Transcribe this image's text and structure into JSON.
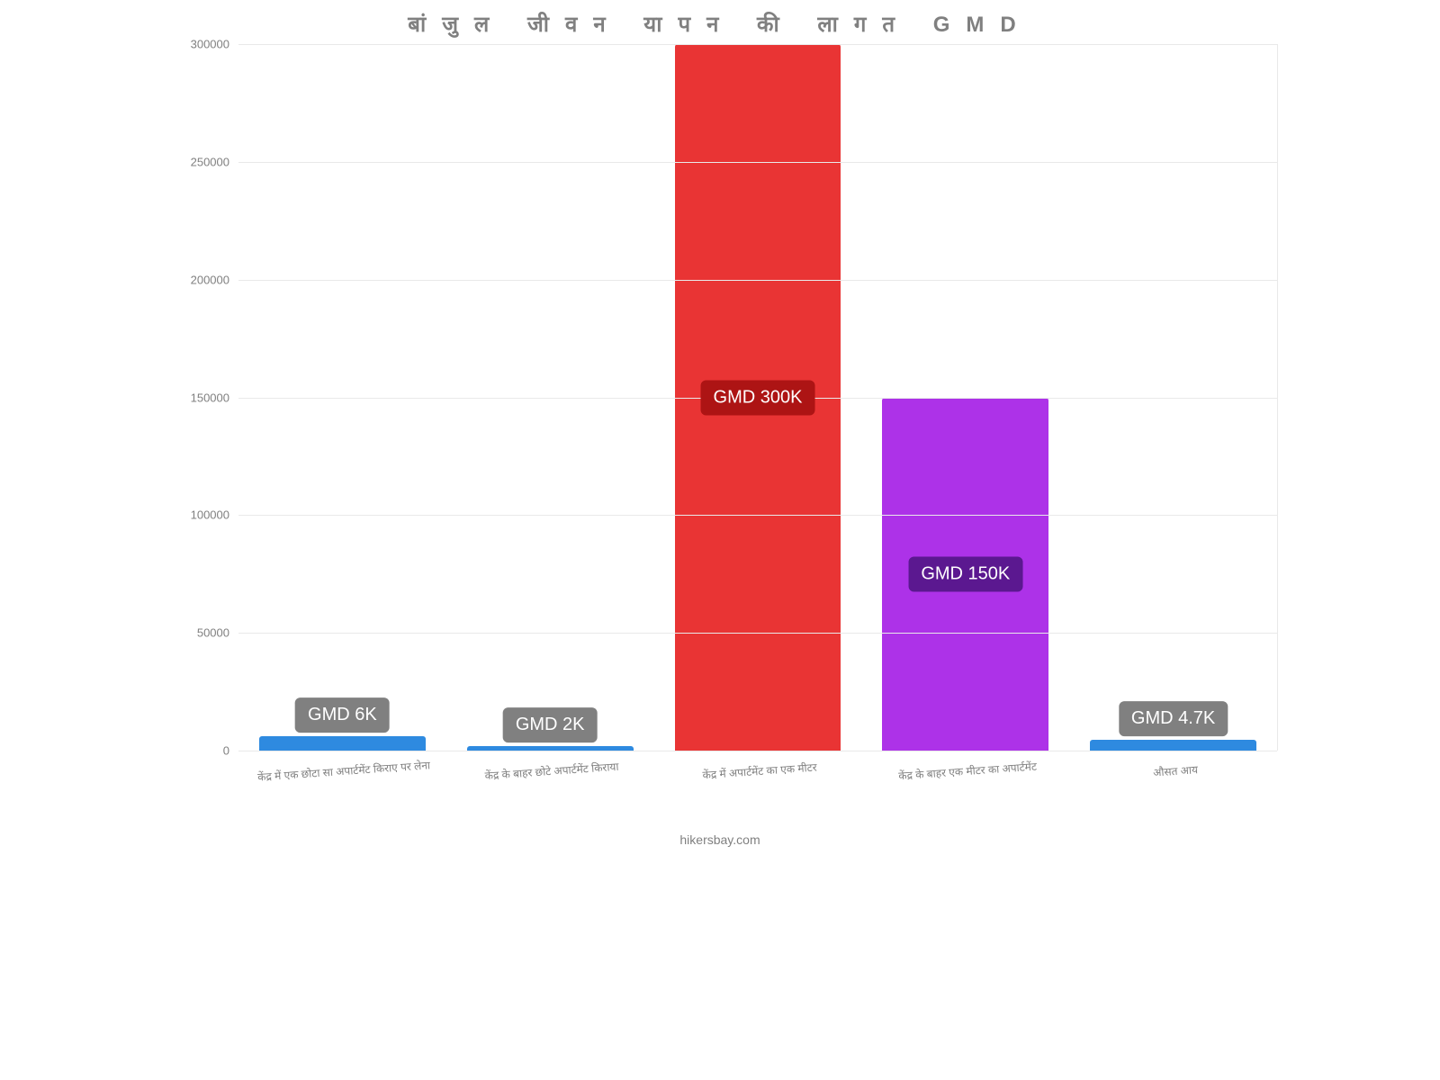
{
  "title": "बांजुल जीवन यापन की लागत GMD",
  "title_fontsize": 24,
  "title_color": "#808080",
  "source": "hikersbay.com",
  "chart": {
    "type": "bar",
    "background_color": "#ffffff",
    "grid_color": "#e9e9e9",
    "ylim": [
      0,
      300000
    ],
    "ytick_step": 50000,
    "yticks": [
      0,
      50000,
      100000,
      150000,
      200000,
      250000,
      300000
    ],
    "bar_width": 0.8,
    "axis_text_color": "#808080",
    "axis_fontsize": 13,
    "x_label_fontsize": 12,
    "value_badge_fontsize": 20,
    "categories": [
      "केंद्र में एक छोटा सा अपार्टमेंट किराए पर लेना",
      "केंद्र के बाहर छोटे अपार्टमेंट किराया",
      "केंद्र में अपार्टमेंट का एक मीटर",
      "केंद्र के बाहर एक मीटर का अपार्टमेंट",
      "औसत आय"
    ],
    "values": [
      6000,
      2000,
      300000,
      150000,
      4700
    ],
    "value_labels": [
      "GMD 6K",
      "GMD 2K",
      "GMD 300K",
      "GMD 150K",
      "GMD 4.7K"
    ],
    "bar_colors": [
      "#2e8ae0",
      "#2e8ae0",
      "#e93434",
      "#ad32e8",
      "#2e8ae0"
    ],
    "badge_colors": [
      "#808080",
      "#808080",
      "#ad1414",
      "#5b1890",
      "#808080"
    ],
    "badge_positions": [
      "above",
      "above",
      "center",
      "center",
      "above"
    ]
  }
}
